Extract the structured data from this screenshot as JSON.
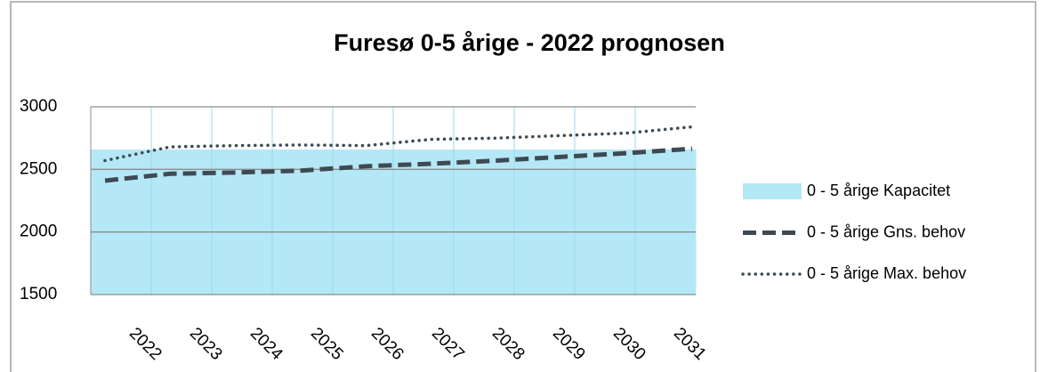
{
  "chart_data": {
    "type": "line",
    "title": "Furesø 0-5 årige - 2022 prognosen",
    "categories": [
      "2022",
      "2023",
      "2024",
      "2025",
      "2026",
      "2027",
      "2028",
      "2029",
      "2030",
      "2031"
    ],
    "series": [
      {
        "name": "0 - 5 årige Kapacitet",
        "type": "area",
        "color": "#b5e8f7",
        "values": [
          2660,
          2660,
          2660,
          2660,
          2660,
          2660,
          2660,
          2660,
          2660,
          2660
        ]
      },
      {
        "name": "0 - 5 årige Gns. behov",
        "type": "line",
        "dash": "dashed",
        "color": "#3e4a53",
        "values": [
          2410,
          2465,
          2475,
          2490,
          2525,
          2545,
          2570,
          2600,
          2630,
          2665
        ]
      },
      {
        "name": "0 - 5 årige Max. behov",
        "type": "line",
        "dash": "dotted",
        "color": "#3e4a53",
        "values": [
          2570,
          2680,
          2690,
          2695,
          2690,
          2740,
          2750,
          2770,
          2790,
          2840
        ]
      }
    ],
    "ylim": [
      1500,
      3000
    ],
    "yticks": [
      1500,
      2000,
      2500,
      3000
    ],
    "grid": true,
    "legend": "right"
  }
}
